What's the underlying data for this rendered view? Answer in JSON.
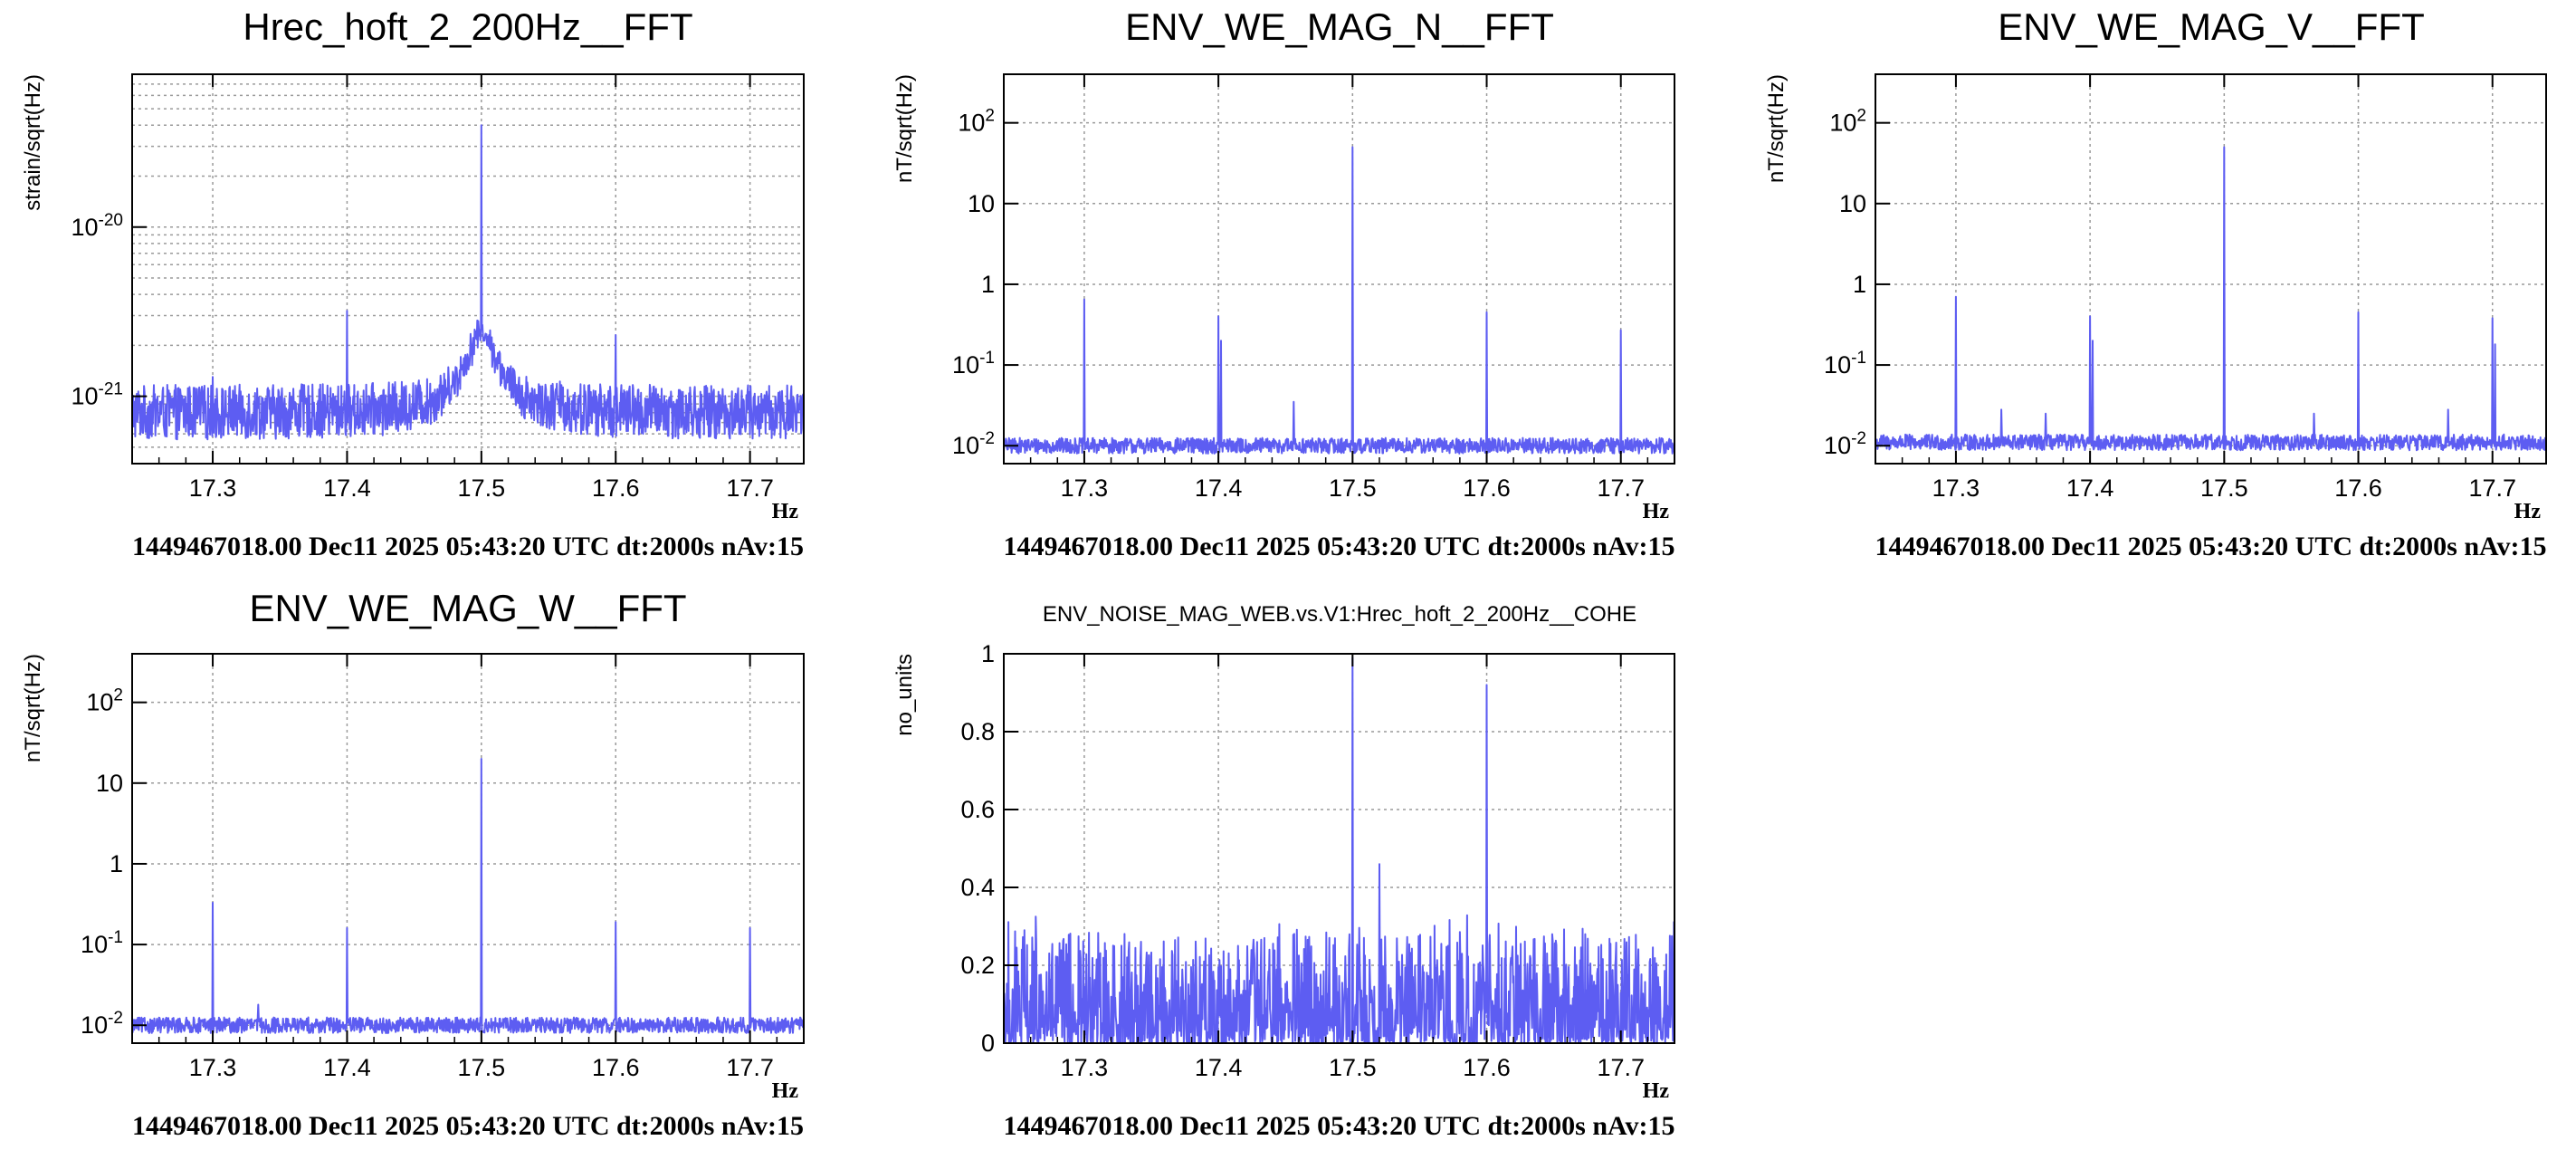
{
  "colors": {
    "trace": "#5d5df2",
    "axes": "#000000",
    "grid": "#9a9a9a"
  },
  "chart_data": [
    {
      "type": "line",
      "title": "Hrec_hoft_2_200Hz__FFT",
      "ylabel": "strain/sqrt(Hz)",
      "xlabel": "Hz",
      "footer": "1449467018.00 Dec11 2025 05:43:20 UTC dt:2000s nAv:15",
      "yscale": "log",
      "xlim": [
        17.24,
        17.74
      ],
      "ylim": [
        4e-22,
        8e-20
      ],
      "xticks": [
        "17.3",
        "17.4",
        "17.5",
        "17.6",
        "17.7"
      ],
      "yticks": [
        {
          "value": 1e-21,
          "label": "10^-21"
        },
        {
          "value": 1e-20,
          "label": "10^-20"
        }
      ],
      "baseline": 8e-22,
      "peaks": [
        [
          17.3,
          1.3e-21
        ],
        [
          17.4,
          3.2e-21
        ],
        [
          17.5,
          4e-20
        ],
        [
          17.6,
          2.3e-21
        ]
      ],
      "hump": {
        "center": 17.5,
        "height": 1.6e-21,
        "width": 0.012
      },
      "grid": true
    },
    {
      "type": "line",
      "title": "ENV_WE_MAG_N__FFT",
      "ylabel": "nT/sqrt(Hz)",
      "xlabel": "Hz",
      "footer": "1449467018.00 Dec11 2025 05:43:20 UTC dt:2000s nAv:15",
      "yscale": "log",
      "xlim": [
        17.24,
        17.74
      ],
      "ylim": [
        0.006,
        400
      ],
      "xticks": [
        "17.3",
        "17.4",
        "17.5",
        "17.6",
        "17.7"
      ],
      "yticks": [
        {
          "value": 0.01,
          "label": "10^-2"
        },
        {
          "value": 0.1,
          "label": "10^-1"
        },
        {
          "value": 1,
          "label": "1"
        },
        {
          "value": 10,
          "label": "10"
        },
        {
          "value": 100,
          "label": "10^2"
        }
      ],
      "baseline": 0.01,
      "peaks": [
        [
          17.3,
          0.65
        ],
        [
          17.4,
          0.4
        ],
        [
          17.402,
          0.2
        ],
        [
          17.456,
          0.035
        ],
        [
          17.5,
          50
        ],
        [
          17.6,
          0.45
        ],
        [
          17.7,
          0.27
        ]
      ],
      "grid": true
    },
    {
      "type": "line",
      "title": "ENV_WE_MAG_V__FFT",
      "ylabel": "nT/sqrt(Hz)",
      "xlabel": "Hz",
      "footer": "1449467018.00 Dec11 2025 05:43:20 UTC dt:2000s nAv:15",
      "yscale": "log",
      "xlim": [
        17.24,
        17.74
      ],
      "ylim": [
        0.006,
        400
      ],
      "xticks": [
        "17.3",
        "17.4",
        "17.5",
        "17.6",
        "17.7"
      ],
      "yticks": [
        {
          "value": 0.01,
          "label": "10^-2"
        },
        {
          "value": 0.1,
          "label": "10^-1"
        },
        {
          "value": 1,
          "label": "1"
        },
        {
          "value": 10,
          "label": "10"
        },
        {
          "value": 100,
          "label": "10^2"
        }
      ],
      "baseline": 0.011,
      "peaks": [
        [
          17.3,
          0.7
        ],
        [
          17.334,
          0.028
        ],
        [
          17.367,
          0.025
        ],
        [
          17.4,
          0.4
        ],
        [
          17.402,
          0.2
        ],
        [
          17.5,
          50
        ],
        [
          17.567,
          0.025
        ],
        [
          17.6,
          0.45
        ],
        [
          17.667,
          0.028
        ],
        [
          17.7,
          0.38
        ],
        [
          17.702,
          0.18
        ]
      ],
      "grid": true
    },
    {
      "type": "line",
      "title": "ENV_WE_MAG_W__FFT",
      "ylabel": "nT/sqrt(Hz)",
      "xlabel": "Hz",
      "footer": "1449467018.00 Dec11 2025 05:43:20 UTC dt:2000s nAv:15",
      "yscale": "log",
      "xlim": [
        17.24,
        17.74
      ],
      "ylim": [
        0.006,
        400
      ],
      "xticks": [
        "17.3",
        "17.4",
        "17.5",
        "17.6",
        "17.7"
      ],
      "yticks": [
        {
          "value": 0.01,
          "label": "10^-2"
        },
        {
          "value": 0.1,
          "label": "10^-1"
        },
        {
          "value": 1,
          "label": "1"
        },
        {
          "value": 10,
          "label": "10"
        },
        {
          "value": 100,
          "label": "10^2"
        }
      ],
      "baseline": 0.01,
      "peaks": [
        [
          17.3,
          0.33
        ],
        [
          17.334,
          0.018
        ],
        [
          17.4,
          0.16
        ],
        [
          17.5,
          20
        ],
        [
          17.6,
          0.19
        ],
        [
          17.7,
          0.16
        ]
      ],
      "grid": true
    },
    {
      "type": "line",
      "title": "ENV_NOISE_MAG_WEB.vs.V1:Hrec_hoft_2_200Hz__COHE",
      "ylabel": "no_units",
      "xlabel": "Hz",
      "footer": "1449467018.00 Dec11 2025 05:43:20 UTC dt:2000s nAv:15",
      "yscale": "linear",
      "xlim": [
        17.24,
        17.74
      ],
      "ylim": [
        0,
        1
      ],
      "xticks": [
        "17.3",
        "17.4",
        "17.5",
        "17.6",
        "17.7"
      ],
      "yticks": [
        {
          "value": 0,
          "label": "0"
        },
        {
          "value": 0.2,
          "label": "0.2"
        },
        {
          "value": 0.4,
          "label": "0.4"
        },
        {
          "value": 0.6,
          "label": "0.6"
        },
        {
          "value": 0.8,
          "label": "0.8"
        },
        {
          "value": 1,
          "label": "1"
        }
      ],
      "baseline": 0.07,
      "peaks": [
        [
          17.5,
          0.99
        ],
        [
          17.52,
          0.46
        ],
        [
          17.6,
          0.92
        ]
      ],
      "grid": true
    }
  ]
}
